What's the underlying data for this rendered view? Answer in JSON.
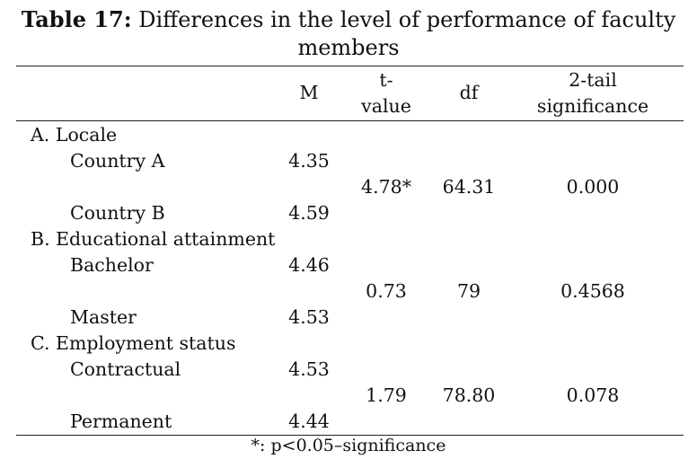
{
  "title": {
    "lead": "Table 17:",
    "text": " Differences in the level of performance of faculty members"
  },
  "headers": {
    "m": "M",
    "t_value_1": "t-",
    "t_value_2": "value",
    "df": "df",
    "sig_1": "2-tail",
    "sig_2": "significance"
  },
  "groups": [
    {
      "label": "A. Locale",
      "rows": [
        {
          "name": "Country A",
          "m": "4.35"
        },
        {
          "name": "Country B",
          "m": "4.59"
        }
      ],
      "t": "4.78*",
      "df": "64.31",
      "sig": "0.000"
    },
    {
      "label": "B. Educational attainment",
      "rows": [
        {
          "name": "Bachelor",
          "m": "4.46"
        },
        {
          "name": "Master",
          "m": "4.53"
        }
      ],
      "t": "0.73",
      "df": "79",
      "sig": "0.4568"
    },
    {
      "label": "C. Employment status",
      "rows": [
        {
          "name": "Contractual",
          "m": "4.53"
        },
        {
          "name": "Permanent",
          "m": "4.44"
        }
      ],
      "t": "1.79",
      "df": "78.80",
      "sig": "0.078"
    }
  ],
  "footnote": "*: p<0.05–significance"
}
